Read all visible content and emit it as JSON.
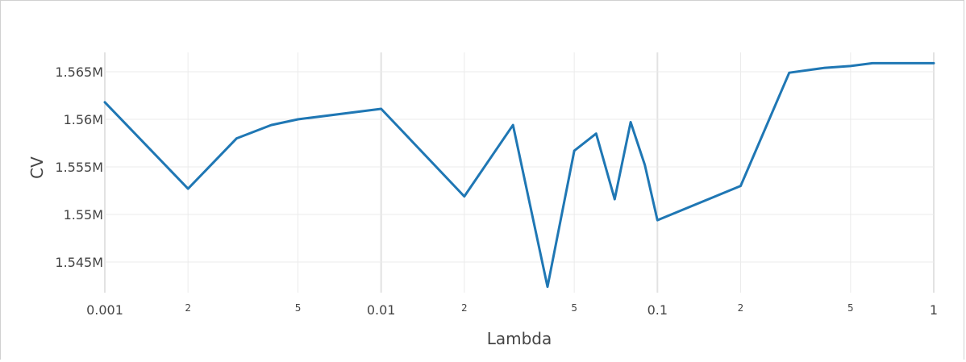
{
  "chart_data": {
    "type": "line",
    "xlabel": "Lambda",
    "ylabel": "CV",
    "xscale": "log",
    "xlim": [
      0.001,
      1
    ],
    "ylim": [
      1542000,
      1567000
    ],
    "grid": true,
    "x_major_ticks": [
      {
        "value": 0.001,
        "label": "0.001"
      },
      {
        "value": 0.01,
        "label": "0.01"
      },
      {
        "value": 0.1,
        "label": "0.1"
      },
      {
        "value": 1,
        "label": "1"
      }
    ],
    "x_minor_ticks": [
      {
        "value": 0.002,
        "label": "2"
      },
      {
        "value": 0.005,
        "label": "5"
      },
      {
        "value": 0.02,
        "label": "2"
      },
      {
        "value": 0.05,
        "label": "5"
      },
      {
        "value": 0.2,
        "label": "2"
      },
      {
        "value": 0.5,
        "label": "5"
      }
    ],
    "y_ticks": [
      {
        "value": 1545000,
        "label": "1.545M"
      },
      {
        "value": 1550000,
        "label": "1.55M"
      },
      {
        "value": 1555000,
        "label": "1.555M"
      },
      {
        "value": 1560000,
        "label": "1.56M"
      },
      {
        "value": 1565000,
        "label": "1.565M"
      }
    ],
    "series": [
      {
        "color": "#1f77b4",
        "x": [
          0.001,
          0.002,
          0.003,
          0.004,
          0.005,
          0.01,
          0.02,
          0.03,
          0.04,
          0.05,
          0.06,
          0.07,
          0.08,
          0.09,
          0.1,
          0.2,
          0.3,
          0.4,
          0.5,
          0.6,
          0.8,
          1.0
        ],
        "y": [
          1561800,
          1552700,
          1558000,
          1559400,
          1560000,
          1561100,
          1551900,
          1559400,
          1542400,
          1556700,
          1558500,
          1551600,
          1559700,
          1555200,
          1549400,
          1553000,
          1564900,
          1565400,
          1565600,
          1565900,
          1565900,
          1565900
        ]
      }
    ]
  }
}
